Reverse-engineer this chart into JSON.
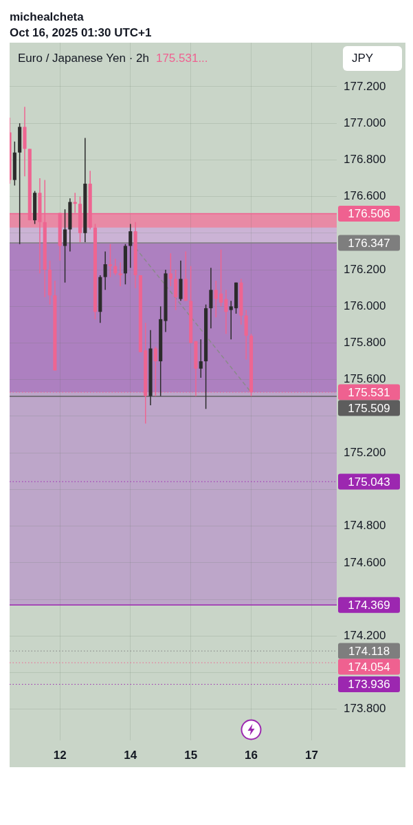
{
  "chart_data": {
    "type": "candlestick",
    "title": "Euro / Japanese Yen · 2h",
    "subtitle": "175.531...",
    "ylabel": "JPY",
    "annotations": [
      "michealcheta",
      "Oct 16, 2025 01:30 UTC+1"
    ],
    "categories": [
      null,
      null,
      null,
      null,
      null,
      null,
      null,
      null,
      null,
      null,
      "12",
      null,
      null,
      null,
      null,
      null,
      null,
      null,
      null,
      null,
      null,
      null,
      null,
      null,
      "14",
      null,
      null,
      null,
      null,
      null,
      null,
      null,
      null,
      null,
      null,
      null,
      "15",
      null,
      null,
      null,
      null,
      null,
      null,
      null,
      null,
      null,
      null,
      null,
      "16",
      null,
      null,
      null,
      null,
      null,
      null,
      null,
      null,
      null,
      null,
      null,
      "17",
      null,
      null,
      null,
      null,
      null
    ],
    "ohlc": [
      [
        176.95,
        177.03,
        176.67,
        176.69
      ],
      [
        176.69,
        176.9,
        176.66,
        176.84
      ],
      [
        176.84,
        177.0,
        176.34,
        176.98
      ],
      [
        176.98,
        177.09,
        176.71,
        176.86
      ],
      [
        176.86,
        176.86,
        176.47,
        176.47
      ],
      [
        176.47,
        176.63,
        176.45,
        176.62
      ],
      [
        176.62,
        176.7,
        176.18,
        176.46
      ],
      [
        176.46,
        176.69,
        176.05,
        176.2
      ],
      [
        176.2,
        176.25,
        176.01,
        176.06
      ],
      [
        176.06,
        176.14,
        175.65,
        175.65
      ],
      [
        176.51,
        176.51,
        176.25,
        176.33
      ],
      [
        176.33,
        176.53,
        176.13,
        176.42
      ],
      [
        176.42,
        176.59,
        176.3,
        176.57
      ],
      [
        176.57,
        176.62,
        176.51,
        176.56
      ],
      [
        176.56,
        176.6,
        176.35,
        176.4
      ],
      [
        176.4,
        176.92,
        176.35,
        176.67
      ],
      [
        176.67,
        176.74,
        176.42,
        176.43
      ],
      [
        176.43,
        176.45,
        175.93,
        175.97
      ],
      [
        175.97,
        176.17,
        175.91,
        176.16
      ],
      [
        176.16,
        176.3,
        176.09,
        176.23
      ],
      [
        176.23,
        176.34,
        176.16,
        176.22
      ],
      [
        176.22,
        176.26,
        176.17,
        176.18
      ],
      [
        176.18,
        176.24,
        176.11,
        176.17
      ],
      [
        176.18,
        176.34,
        176.12,
        176.33
      ],
      [
        176.33,
        176.45,
        176.21,
        176.41
      ],
      [
        176.41,
        176.46,
        176.1,
        176.17
      ],
      [
        176.17,
        176.17,
        175.75,
        175.75
      ],
      [
        175.76,
        175.91,
        175.36,
        175.51
      ],
      [
        175.51,
        175.87,
        175.46,
        175.77
      ],
      [
        175.77,
        175.78,
        175.51,
        175.7
      ],
      [
        175.7,
        176.0,
        175.51,
        175.93
      ],
      [
        175.92,
        176.2,
        175.86,
        176.18
      ],
      [
        176.18,
        176.29,
        176.11,
        176.15
      ],
      [
        176.15,
        176.2,
        175.98,
        176.05
      ],
      [
        176.04,
        176.25,
        176.03,
        176.15
      ],
      [
        176.15,
        176.3,
        176.03,
        176.03
      ],
      [
        176.03,
        176.22,
        175.8,
        175.8
      ],
      [
        175.81,
        175.81,
        175.51,
        175.66
      ],
      [
        175.66,
        175.82,
        175.61,
        175.7
      ],
      [
        175.7,
        176.01,
        175.44,
        175.99
      ],
      [
        175.99,
        176.21,
        175.88,
        176.09
      ],
      [
        176.09,
        176.14,
        175.94,
        176.04
      ],
      [
        176.07,
        176.31,
        176.0,
        176.02
      ],
      [
        176.04,
        176.09,
        175.85,
        175.97
      ],
      [
        175.98,
        176.03,
        175.82,
        176.0
      ],
      [
        175.99,
        176.13,
        175.96,
        176.13
      ],
      [
        176.13,
        176.15,
        175.9,
        175.95
      ],
      [
        175.95,
        175.98,
        175.71,
        175.84
      ],
      [
        175.84,
        175.85,
        175.51,
        175.53
      ],
      null,
      null,
      null,
      null,
      null,
      null,
      null,
      null,
      null,
      null,
      null,
      null,
      null,
      null,
      null,
      null,
      null
    ],
    "colors": [
      "#ee6591",
      "#2b2b2b",
      "#2b2b2b",
      "#ee6591",
      "#ee6591",
      "#2b2b2b",
      "#ee6591",
      "#ee6591",
      "#ee6591",
      "#ee6591",
      "#ee6591",
      "#2b2b2b",
      "#2b2b2b",
      "#ee6591",
      "#ee6591",
      "#2b2b2b",
      "#ee6591",
      "#ee6591",
      "#2b2b2b",
      "#2b2b2b",
      "#ee6591",
      "#ee6591",
      "#ee6591",
      "#2b2b2b",
      "#2b2b2b",
      "#ee6591",
      "#ee6591",
      "#ee6591",
      "#2b2b2b",
      "#ee6591",
      "#2b2b2b",
      "#2b2b2b",
      "#ee6591",
      "#ee6591",
      "#2b2b2b",
      "#ee6591",
      "#ee6591",
      "#ee6591",
      "#2b2b2b",
      "#2b2b2b",
      "#2b2b2b",
      "#ee6591",
      "#ee6591",
      "#ee6591",
      "#2b2b2b",
      "#2b2b2b",
      "#ee6591",
      "#ee6591",
      "#ee6591",
      null,
      null,
      null,
      null,
      null,
      null,
      null,
      null,
      null,
      null,
      null,
      null,
      null,
      null,
      null,
      null,
      null
    ],
    "series": [
      {
        "type": "line",
        "color": "#8a8a8a",
        "line_style": "dashed",
        "marker": "none",
        "values": [
          null,
          null,
          null,
          null,
          null,
          null,
          null,
          null,
          null,
          null,
          null,
          null,
          null,
          null,
          null,
          null,
          null,
          null,
          null,
          null,
          null,
          null,
          null,
          null,
          null,
          176.32,
          null,
          null,
          null,
          null,
          null,
          null,
          null,
          null,
          null,
          null,
          null,
          null,
          null,
          null,
          null,
          null,
          null,
          null,
          null,
          null,
          null,
          null,
          175.53,
          null,
          null,
          null,
          null,
          null,
          null,
          null,
          null,
          null,
          null,
          null,
          null,
          null,
          null,
          null,
          null,
          null
        ]
      }
    ],
    "ylim": [
      173.63,
      177.44
    ],
    "yticks": [
      {
        "value": 173.8,
        "label": "173.800"
      },
      {
        "value": 174.0,
        "label": null
      },
      {
        "value": 174.2,
        "label": "174.200"
      },
      {
        "value": 174.4,
        "label": null
      },
      {
        "value": 174.6,
        "label": "174.600"
      },
      {
        "value": 174.8,
        "label": "174.800"
      },
      {
        "value": 175.0,
        "label": null
      },
      {
        "value": 175.2,
        "label": "175.200"
      },
      {
        "value": 175.4,
        "label": null
      },
      {
        "value": 175.6,
        "label": "175.600"
      },
      {
        "value": 175.8,
        "label": "175.800"
      },
      {
        "value": 176.0,
        "label": "176.000"
      },
      {
        "value": 176.2,
        "label": "176.200"
      },
      {
        "value": 176.4,
        "label": null
      },
      {
        "value": 176.6,
        "label": "176.600"
      },
      {
        "value": 176.8,
        "label": "176.800"
      },
      {
        "value": 177.0,
        "label": "177.000"
      },
      {
        "value": 177.2,
        "label": "177.200"
      }
    ],
    "grid": true,
    "bands": [
      {
        "axis": "y",
        "from": 176.347,
        "to": 176.506,
        "color": "#e88aa5"
      },
      {
        "axis": "y",
        "from": 175.531,
        "to": 176.347,
        "color": "#ad80c0"
      },
      {
        "axis": "y",
        "from": 174.369,
        "to": 175.531,
        "color": "#bda6c9"
      },
      {
        "axis": "y",
        "from": 176.347,
        "to": 176.43,
        "color": "#cbb3d5"
      }
    ],
    "ref_lines": [
      {
        "axis": "y",
        "value": 176.506,
        "label": "176.506",
        "color": "#ef6190",
        "line_style": "solid"
      },
      {
        "axis": "y",
        "value": 176.347,
        "label": "176.347",
        "color": "#7e7e7e",
        "line_style": "solid"
      },
      {
        "axis": "y",
        "value": 175.531,
        "label": "175.531",
        "color": "#ef6190",
        "line_style": "dotted"
      },
      {
        "axis": "y",
        "value": 175.509,
        "label": "175.509",
        "color": "#5d5d5d",
        "line_style": "solid"
      },
      {
        "axis": "y",
        "value": 175.043,
        "label": "175.043",
        "color": "#9c27b0",
        "line_style": "dotted"
      },
      {
        "axis": "y",
        "value": 174.369,
        "label": "174.369",
        "color": "#9c27b0",
        "line_style": "solid"
      },
      {
        "axis": "y",
        "value": 174.118,
        "label": "174.118",
        "color": "#7e7e7e",
        "line_style": "dotted"
      },
      {
        "axis": "y",
        "value": 174.054,
        "label": "174.054",
        "color": "#ef6190",
        "line_style": "dotted"
      },
      {
        "axis": "y",
        "value": 173.936,
        "label": "173.936",
        "color": "#9c27b0",
        "line_style": "dotted"
      }
    ]
  }
}
